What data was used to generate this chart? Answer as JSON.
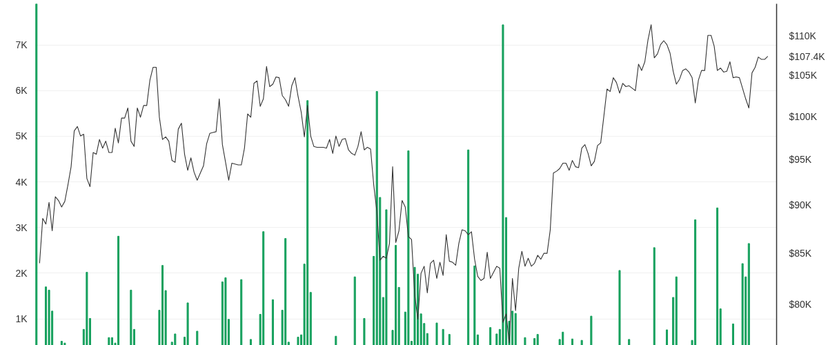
{
  "chart_data": {
    "type": "bar",
    "categories": [
      null,
      null,
      null,
      null,
      null,
      null,
      null,
      null,
      null,
      null,
      null,
      null,
      null,
      null,
      null,
      null,
      null,
      null,
      null,
      null,
      null,
      null,
      null,
      null,
      null,
      null,
      null,
      null,
      null,
      null,
      null,
      null,
      null,
      null,
      null,
      null,
      null,
      null,
      null,
      null,
      null,
      null,
      null,
      null,
      null,
      null,
      null,
      null,
      null,
      null,
      null,
      null,
      null,
      null,
      null,
      null,
      null,
      null,
      null,
      null,
      null,
      null,
      null,
      null,
      null,
      null,
      null,
      null,
      null,
      null,
      null,
      null,
      null,
      null,
      null,
      null,
      null,
      null,
      null,
      null,
      null,
      null,
      null,
      null,
      null,
      null,
      null,
      null,
      null,
      null,
      null,
      null,
      null,
      null,
      null,
      null,
      null,
      null,
      null,
      null,
      null,
      null,
      null,
      null,
      null,
      null,
      null,
      null,
      null,
      null,
      null,
      null,
      null,
      null,
      null,
      null,
      null,
      null,
      null,
      null,
      null,
      null,
      null,
      null,
      null,
      null,
      null,
      null,
      null,
      null,
      null,
      null,
      null,
      null,
      null,
      null,
      null,
      null,
      null,
      null,
      null,
      null,
      null,
      null,
      null,
      null,
      null,
      null,
      null,
      null,
      null,
      null,
      null,
      null,
      null,
      null,
      null,
      null,
      null,
      null,
      null,
      null,
      null,
      null,
      null,
      null,
      null,
      null,
      null,
      null,
      null,
      null,
      null,
      null,
      null,
      null,
      null,
      null,
      null,
      null,
      null,
      null,
      null,
      null,
      null,
      null,
      null,
      null,
      null,
      null,
      null,
      null,
      null,
      null,
      null,
      null,
      null,
      null,
      null,
      null,
      null,
      null,
      null,
      null,
      null,
      null,
      null,
      null,
      null,
      null,
      null,
      null,
      null,
      null,
      null,
      null,
      null,
      null,
      null,
      null,
      null,
      null,
      null,
      null,
      null,
      null,
      null,
      null,
      null,
      null,
      null,
      null,
      null
    ],
    "ylim": [
      0.42,
      7.9
    ],
    "yticks": [
      {
        "value": 1,
        "label": "1K"
      },
      {
        "value": 2,
        "label": "2K"
      },
      {
        "value": 3,
        "label": "3K"
      },
      {
        "value": 4,
        "label": "4K"
      },
      {
        "value": 5,
        "label": "5K"
      },
      {
        "value": 6,
        "label": "6K"
      },
      {
        "value": 7,
        "label": "7K"
      }
    ],
    "y2lim": [
      76.2,
      114.3
    ],
    "y2ticks": [
      {
        "value": 80,
        "label": "$80K"
      },
      {
        "value": 85,
        "label": "$85K"
      },
      {
        "value": 90,
        "label": "$90K"
      },
      {
        "value": 95,
        "label": "$95K"
      },
      {
        "value": 100,
        "label": "$100K"
      },
      {
        "value": 105,
        "label": "$105K"
      },
      {
        "value": 107.4,
        "label": "$107.4K"
      },
      {
        "value": 110,
        "label": "$110K"
      }
    ],
    "log": "y2",
    "grid": "y",
    "tick_labels": "y",
    "series": [
      {
        "color": "#16a05d",
        "values": [
          7.9,
          null,
          null,
          1.7,
          1.63,
          1.17,
          null,
          null,
          0.51,
          0.47,
          null,
          null,
          null,
          null,
          null,
          0.77,
          2.02,
          1.01,
          null,
          null,
          null,
          null,
          null,
          0.59,
          0.59,
          0.47,
          2.81,
          null,
          null,
          null,
          1.63,
          0.77,
          null,
          null,
          null,
          null,
          null,
          null,
          null,
          1.19,
          2.17,
          1.62,
          null,
          0.49,
          0.67,
          null,
          null,
          0.6,
          1.35,
          null,
          null,
          0.73,
          null,
          null,
          null,
          null,
          null,
          null,
          null,
          1.81,
          1.9,
          0.99,
          null,
          null,
          null,
          1.86,
          null,
          null,
          0.55,
          null,
          null,
          1.1,
          2.91,
          null,
          null,
          1.42,
          null,
          null,
          1.19,
          2.76,
          0.49,
          null,
          null,
          0.6,
          0.65,
          2.2,
          5.78,
          1.58,
          null,
          null,
          null,
          null,
          null,
          null,
          null,
          0.62,
          null,
          null,
          null,
          null,
          null,
          1.92,
          null,
          null,
          1.01,
          null,
          null,
          2.37,
          5.98,
          3.66,
          1.47,
          3.39,
          null,
          0.75,
          2.61,
          1.69,
          null,
          1.15,
          4.68,
          0.51,
          2.13,
          1.98,
          1.11,
          0.9,
          0.68,
          null,
          null,
          0.91,
          null,
          0.77,
          null,
          0.66,
          null,
          null,
          null,
          null,
          null,
          4.7,
          null,
          2.16,
          0.65,
          null,
          null,
          null,
          0.81,
          null,
          0.67,
          0.77,
          7.44,
          3.22,
          0.95,
          1.17,
          1.12,
          null,
          null,
          0.59,
          null,
          null,
          0.57,
          0.66,
          null,
          null,
          null,
          null,
          null,
          null,
          0.55,
          0.71,
          null,
          null,
          0.56,
          null,
          null,
          0.53,
          null,
          null,
          1.06,
          null,
          null,
          null,
          null,
          null,
          null,
          null,
          null,
          2.06,
          null,
          null,
          0.55,
          null,
          null,
          null,
          null,
          null,
          null,
          null,
          2.56,
          null,
          null,
          null,
          0.76,
          null,
          1.47,
          1.92,
          null,
          null,
          null,
          null,
          0.53,
          3.17,
          null,
          null,
          null,
          null,
          null,
          null,
          3.43,
          1.22,
          null,
          null,
          null,
          0.89,
          null,
          null,
          2.21,
          1.92,
          2.65,
          null,
          null,
          null,
          null,
          null,
          null
        ]
      },
      {
        "type": "line",
        "axis": "y2",
        "color": "#333333",
        "values": [
          null,
          84.0,
          88.6,
          88.0,
          90.3,
          87.3,
          90.9,
          90.5,
          89.8,
          90.4,
          92.2,
          94.2,
          98.3,
          98.8,
          97.7,
          97.9,
          92.9,
          92.0,
          95.8,
          95.6,
          97.3,
          96.3,
          97.1,
          95.8,
          95.8,
          98.6,
          96.9,
          99.8,
          99.8,
          101.0,
          97.1,
          96.5,
          101.0,
          99.9,
          101.3,
          101.3,
          104.4,
          106.0,
          106.0,
          99.9,
          97.3,
          97.6,
          97.1,
          94.9,
          94.7,
          98.5,
          99.2,
          95.6,
          93.8,
          95.2,
          93.6,
          92.7,
          93.5,
          94.3,
          96.8,
          98.0,
          98.1,
          98.2,
          102.1,
          96.7,
          94.7,
          92.7,
          94.6,
          94.5,
          94.4,
          94.4,
          96.3,
          100.3,
          99.9,
          104.0,
          104.3,
          101.2,
          102.1,
          106.1,
          103.6,
          103.9,
          104.8,
          104.7,
          102.5,
          102.0,
          101.2,
          103.7,
          104.7,
          102.4,
          100.5,
          97.6,
          101.3,
          97.7,
          96.5,
          96.4,
          96.4,
          96.4,
          96.3,
          97.3,
          95.7,
          97.7,
          96.5,
          97.3,
          97.4,
          96.1,
          95.7,
          95.5,
          96.5,
          98.2,
          96.1,
          96.4,
          96.2,
          92.2,
          89.3,
          84.3,
          84.7,
          84.5,
          86.0,
          94.2,
          86.1,
          87.3,
          90.5,
          89.8,
          86.7,
          86.4,
          80.9,
          78.6,
          83.0,
          83.7,
          81.1,
          84.0,
          84.3,
          82.5,
          84.1,
          82.8,
          86.9,
          84.2,
          84.1,
          83.8,
          86.0,
          87.4,
          87.3,
          86.9,
          87.2,
          84.4,
          82.7,
          82.3,
          82.5,
          85.1,
          82.5,
          83.1,
          83.7,
          83.5,
          78.3,
          79.1,
          76.4,
          82.5,
          79.4,
          83.5,
          85.2,
          83.7,
          84.5,
          83.7,
          84.0,
          84.8,
          84.4,
          85.0,
          85.0,
          87.4,
          93.5,
          93.7,
          94.0,
          94.6,
          94.6,
          93.8,
          94.9,
          94.2,
          94.1,
          96.3,
          96.7,
          95.7,
          94.3,
          94.8,
          96.6,
          96.9,
          100.0,
          103.3,
          103.0,
          104.7,
          104.1,
          102.8,
          104.0,
          103.6,
          103.7,
          103.4,
          103.1,
          106.4,
          105.6,
          106.7,
          109.5,
          111.5,
          107.2,
          107.7,
          108.9,
          109.4,
          108.9,
          107.8,
          105.5,
          103.9,
          104.5,
          105.6,
          105.8,
          105.4,
          104.7,
          101.6,
          104.4,
          105.6,
          105.6,
          110.1,
          110.1,
          108.7,
          105.6,
          105.9,
          105.4,
          105.5,
          106.7,
          104.7,
          104.8,
          104.7,
          103.4,
          102.1,
          101.0,
          105.3,
          106.0,
          107.3,
          107.0,
          107.0,
          107.4
        ]
      }
    ]
  }
}
